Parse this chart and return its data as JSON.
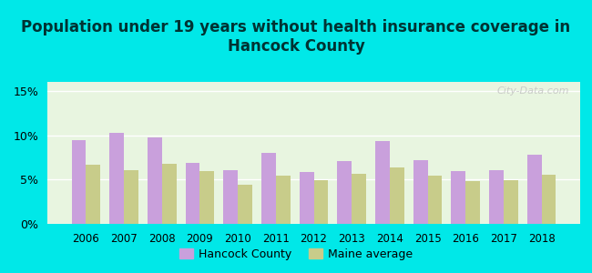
{
  "title": "Population under 19 years without health insurance coverage in\nHancock County",
  "years": [
    2006,
    2007,
    2008,
    2009,
    2010,
    2011,
    2012,
    2013,
    2014,
    2015,
    2016,
    2017,
    2018
  ],
  "hancock": [
    9.4,
    10.3,
    9.7,
    6.9,
    6.1,
    8.0,
    5.8,
    7.1,
    9.3,
    7.2,
    5.9,
    6.1,
    7.8
  ],
  "maine": [
    6.7,
    6.1,
    6.8,
    5.9,
    4.4,
    5.4,
    4.9,
    5.6,
    6.4,
    5.4,
    4.8,
    4.9,
    5.5
  ],
  "hancock_color": "#c9a0dc",
  "maine_color": "#c8cc8a",
  "background_outer": "#00e8e8",
  "background_plot": "#e8f5e0",
  "ylim": [
    0,
    16
  ],
  "yticks": [
    0,
    5,
    10,
    15
  ],
  "ytick_labels": [
    "0%",
    "5%",
    "10%",
    "15%"
  ],
  "legend_hancock": "Hancock County",
  "legend_maine": "Maine average",
  "bar_width": 0.38,
  "title_fontsize": 12,
  "watermark": "City-Data.com"
}
